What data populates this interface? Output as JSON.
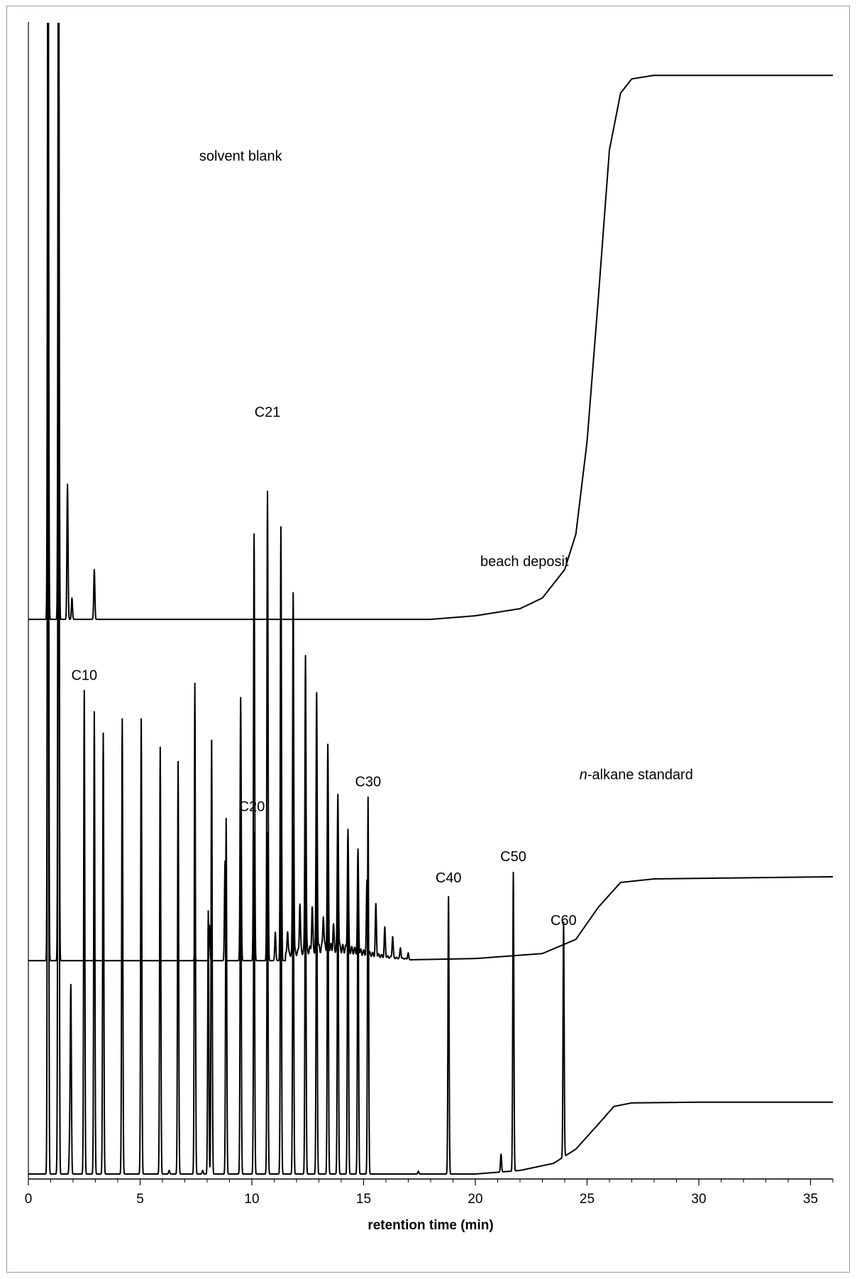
{
  "chart_data": {
    "type": "line",
    "xlabel": "retention time (min)",
    "ylabel": "",
    "xlim": [
      0,
      36
    ],
    "xticks": [
      0,
      5,
      10,
      15,
      20,
      25,
      30,
      35
    ],
    "grid": false,
    "legend": "none",
    "line_color": "#000000",
    "series": [
      {
        "name": "solvent blank",
        "baseline_offset": 0.78,
        "x": [
          0,
          0.8,
          0.88,
          1.0,
          1.35,
          1.5,
          1.7,
          1.76,
          1.9,
          2.0,
          2.9,
          3.0,
          5,
          10,
          15,
          18,
          20,
          22,
          23,
          24,
          24.5,
          25,
          25.5,
          26,
          26.5,
          27,
          28,
          30,
          36
        ],
        "y": [
          0.0,
          0.0,
          1.2,
          1.2,
          1.2,
          0.0,
          0.0,
          0.19,
          0.0,
          0.0,
          0.07,
          0.0,
          0.0,
          0.0,
          0.0,
          0.0,
          0.005,
          0.015,
          0.03,
          0.07,
          0.12,
          0.25,
          0.45,
          0.66,
          0.74,
          0.76,
          0.765,
          0.765,
          0.765
        ],
        "peaks": [
          {
            "x": 0.88,
            "h": 1.2
          },
          {
            "x": 1.35,
            "h": 1.2
          },
          {
            "x": 1.75,
            "h": 0.19
          },
          {
            "x": 1.95,
            "h": 0.03
          },
          {
            "x": 2.95,
            "h": 0.07
          }
        ]
      },
      {
        "name": "beach deposit",
        "baseline_offset": 0.3,
        "baseline": [
          [
            0,
            0
          ],
          [
            15,
            0
          ],
          [
            20,
            0.003
          ],
          [
            23,
            0.01
          ],
          [
            24.5,
            0.03
          ],
          [
            25.5,
            0.075
          ],
          [
            26.5,
            0.11
          ],
          [
            28,
            0.115
          ],
          [
            36,
            0.118
          ]
        ],
        "peaks": [
          {
            "x": 0.88,
            "h": 1.6
          },
          {
            "x": 1.35,
            "h": 1.6
          },
          {
            "x": 2.95,
            "h": 0.005
          },
          {
            "x": 7.45,
            "h": 0.01
          },
          {
            "x": 8.1,
            "h": 0.05
          },
          {
            "x": 8.8,
            "h": 0.14
          },
          {
            "x": 9.5,
            "h": 0.37
          },
          {
            "x": 10.1,
            "h": 0.6
          },
          {
            "x": 10.7,
            "h": 0.66
          },
          {
            "x": 11.3,
            "h": 0.61
          },
          {
            "x": 11.85,
            "h": 0.51
          },
          {
            "x": 12.4,
            "h": 0.42
          },
          {
            "x": 12.9,
            "h": 0.36
          },
          {
            "x": 13.4,
            "h": 0.28
          },
          {
            "x": 13.85,
            "h": 0.22
          },
          {
            "x": 14.3,
            "h": 0.17
          },
          {
            "x": 14.75,
            "h": 0.14
          },
          {
            "x": 15.15,
            "h": 0.1
          },
          {
            "x": 15.55,
            "h": 0.07
          },
          {
            "x": 15.95,
            "h": 0.04
          },
          {
            "x": 16.3,
            "h": 0.03
          },
          {
            "x": 16.65,
            "h": 0.015
          },
          {
            "x": 17.0,
            "h": 0.008
          },
          {
            "x": 11.05,
            "h": 0.04
          },
          {
            "x": 11.6,
            "h": 0.035
          },
          {
            "x": 12.15,
            "h": 0.07
          },
          {
            "x": 12.7,
            "h": 0.06
          },
          {
            "x": 13.2,
            "h": 0.05
          },
          {
            "x": 13.65,
            "h": 0.03
          }
        ],
        "hump": {
          "from": 11.5,
          "to": 17,
          "center": 13.5,
          "height": 0.018
        }
      },
      {
        "name": "n-alkane standard",
        "baseline_offset": 0.0,
        "baseline": [
          [
            0,
            0
          ],
          [
            20,
            0
          ],
          [
            22,
            0.005
          ],
          [
            23.5,
            0.015
          ],
          [
            24.5,
            0.035
          ],
          [
            25.5,
            0.07
          ],
          [
            26.2,
            0.095
          ],
          [
            27,
            0.1
          ],
          [
            30,
            0.101
          ],
          [
            36,
            0.101
          ]
        ],
        "peaks": [
          {
            "x": 0.88,
            "h": 1.6
          },
          {
            "x": 1.35,
            "h": 1.6
          },
          {
            "x": 1.32,
            "h": 0.1
          },
          {
            "x": 1.85,
            "h": 0.05
          },
          {
            "x": 1.9,
            "h": 0.26
          },
          {
            "x": 2.5,
            "h": 0.68
          },
          {
            "x": 2.95,
            "h": 0.65
          },
          {
            "x": 3.35,
            "h": 0.62
          },
          {
            "x": 4.2,
            "h": 0.64
          },
          {
            "x": 5.05,
            "h": 0.64
          },
          {
            "x": 5.9,
            "h": 0.6
          },
          {
            "x": 6.7,
            "h": 0.58
          },
          {
            "x": 7.45,
            "h": 0.69
          },
          {
            "x": 8.05,
            "h": 0.37
          },
          {
            "x": 8.2,
            "h": 0.61
          },
          {
            "x": 8.85,
            "h": 0.5
          },
          {
            "x": 9.5,
            "h": 0.52
          },
          {
            "x": 10.1,
            "h": 0.48
          },
          {
            "x": 10.7,
            "h": 0.48
          },
          {
            "x": 11.3,
            "h": 0.56
          },
          {
            "x": 11.85,
            "h": 0.49
          },
          {
            "x": 12.4,
            "h": 0.49
          },
          {
            "x": 12.9,
            "h": 0.47
          },
          {
            "x": 13.4,
            "h": 0.48
          },
          {
            "x": 13.85,
            "h": 0.45
          },
          {
            "x": 14.3,
            "h": 0.47
          },
          {
            "x": 14.75,
            "h": 0.42
          },
          {
            "x": 15.2,
            "h": 0.53
          },
          {
            "x": 18.8,
            "h": 0.39
          },
          {
            "x": 21.15,
            "h": 0.025
          },
          {
            "x": 21.7,
            "h": 0.42
          },
          {
            "x": 23.95,
            "h": 0.33
          },
          {
            "x": 6.3,
            "h": 0.005
          },
          {
            "x": 7.8,
            "h": 0.005
          },
          {
            "x": 17.45,
            "h": 0.004
          }
        ]
      }
    ],
    "annotations": [
      {
        "text": "solvent blank",
        "x": 9.5,
        "y": 1.425
      },
      {
        "text": "C21",
        "x": 10.7,
        "y": 1.065
      },
      {
        "text": "beach deposit",
        "x": 22.2,
        "y": 0.855
      },
      {
        "text": "C10",
        "x": 2.5,
        "y": 0.695
      },
      {
        "text": "n-alkane standard",
        "x": 27.2,
        "y": 0.555
      },
      {
        "text": "C30",
        "x": 15.2,
        "y": 0.545
      },
      {
        "text": "C20",
        "x": 10.0,
        "y": 0.51
      },
      {
        "text": "C40",
        "x": 18.8,
        "y": 0.41
      },
      {
        "text": "C50",
        "x": 21.7,
        "y": 0.44
      },
      {
        "text": "C60",
        "x": 23.95,
        "y": 0.35
      }
    ],
    "ylim": [
      0,
      1.62
    ]
  }
}
